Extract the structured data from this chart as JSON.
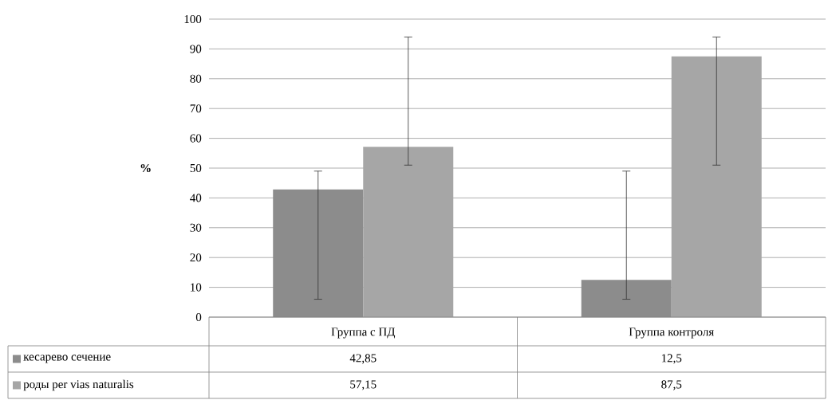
{
  "chart_data": {
    "type": "bar",
    "ylabel": "%",
    "categories": [
      "Группа с ПД",
      "Группа контроля"
    ],
    "series": [
      {
        "name": "кесарево сечение",
        "color": "#8c8c8c",
        "values": [
          42.85,
          12.5
        ],
        "value_labels": [
          "42,85",
          "12,5"
        ],
        "errors": [
          [
            6,
            49
          ],
          [
            6,
            49
          ]
        ]
      },
      {
        "name": "роды per vias naturalis",
        "color": "#a6a6a6",
        "values": [
          57.15,
          87.5
        ],
        "value_labels": [
          "57,15",
          "87,5"
        ],
        "errors": [
          [
            51,
            94
          ],
          [
            51,
            94
          ]
        ]
      }
    ],
    "ylim": [
      0,
      100
    ],
    "yticks": [
      0,
      10,
      20,
      30,
      40,
      50,
      60,
      70,
      80,
      90,
      100
    ],
    "grid": "y",
    "legend": "bottom"
  }
}
